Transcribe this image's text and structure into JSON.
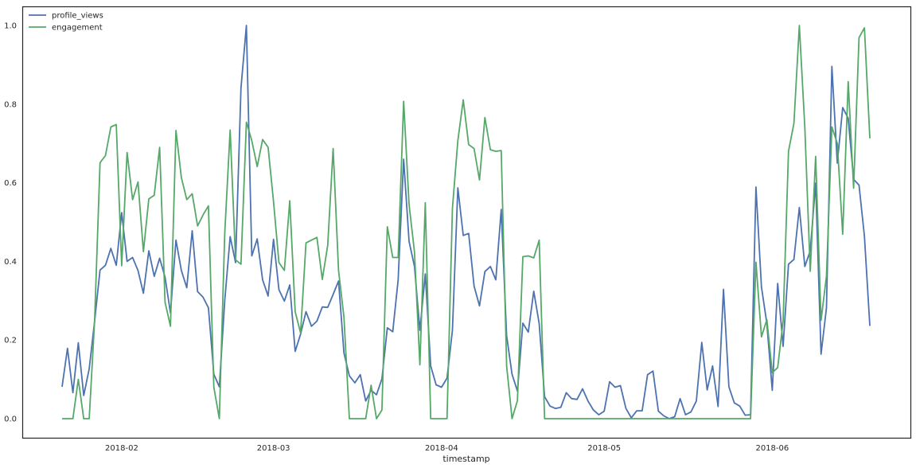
{
  "chart_data": {
    "type": "line",
    "title": "",
    "xlabel": "timestamp",
    "ylabel": "",
    "ylim": [
      -0.05,
      1.05
    ],
    "grid": false,
    "legend_position": "top-left",
    "xticks": [
      {
        "date": "2018-02-01",
        "label": "2018-02"
      },
      {
        "date": "2018-03-01",
        "label": "2018-03"
      },
      {
        "date": "2018-04-01",
        "label": "2018-04"
      },
      {
        "date": "2018-05-01",
        "label": "2018-05"
      },
      {
        "date": "2018-06-01",
        "label": "2018-06"
      }
    ],
    "yticks": [
      {
        "value": 0.0,
        "label": "0.0"
      },
      {
        "value": 0.2,
        "label": "0.2"
      },
      {
        "value": 0.4,
        "label": "0.4"
      },
      {
        "value": 0.6,
        "label": "0.6"
      },
      {
        "value": 0.8,
        "label": "0.8"
      },
      {
        "value": 1.0,
        "label": "1.0"
      }
    ],
    "x": [
      "2018-01-21",
      "2018-01-22",
      "2018-01-23",
      "2018-01-24",
      "2018-01-25",
      "2018-01-26",
      "2018-01-27",
      "2018-01-28",
      "2018-01-29",
      "2018-01-30",
      "2018-01-31",
      "2018-02-01",
      "2018-02-02",
      "2018-02-03",
      "2018-02-04",
      "2018-02-05",
      "2018-02-06",
      "2018-02-07",
      "2018-02-08",
      "2018-02-09",
      "2018-02-10",
      "2018-02-11",
      "2018-02-12",
      "2018-02-13",
      "2018-02-14",
      "2018-02-15",
      "2018-02-16",
      "2018-02-17",
      "2018-02-18",
      "2018-02-19",
      "2018-02-20",
      "2018-02-21",
      "2018-02-22",
      "2018-02-23",
      "2018-02-24",
      "2018-02-25",
      "2018-02-26",
      "2018-02-27",
      "2018-02-28",
      "2018-03-01",
      "2018-03-02",
      "2018-03-03",
      "2018-03-04",
      "2018-03-05",
      "2018-03-06",
      "2018-03-07",
      "2018-03-08",
      "2018-03-09",
      "2018-03-10",
      "2018-03-11",
      "2018-03-12",
      "2018-03-13",
      "2018-03-14",
      "2018-03-15",
      "2018-03-16",
      "2018-03-17",
      "2018-03-18",
      "2018-03-19",
      "2018-03-20",
      "2018-03-21",
      "2018-03-22",
      "2018-03-23",
      "2018-03-24",
      "2018-03-25",
      "2018-03-26",
      "2018-03-27",
      "2018-03-28",
      "2018-03-29",
      "2018-03-30",
      "2018-03-31",
      "2018-04-01",
      "2018-04-02",
      "2018-04-03",
      "2018-04-04",
      "2018-04-05",
      "2018-04-06",
      "2018-04-07",
      "2018-04-08",
      "2018-04-09",
      "2018-04-10",
      "2018-04-11",
      "2018-04-12",
      "2018-04-13",
      "2018-04-14",
      "2018-04-15",
      "2018-04-16",
      "2018-04-17",
      "2018-04-18",
      "2018-04-19",
      "2018-04-20",
      "2018-04-21",
      "2018-04-22",
      "2018-04-23",
      "2018-04-24",
      "2018-04-25",
      "2018-04-26",
      "2018-04-27",
      "2018-04-28",
      "2018-04-29",
      "2018-04-30",
      "2018-05-01",
      "2018-05-02",
      "2018-05-03",
      "2018-05-04",
      "2018-05-05",
      "2018-05-06",
      "2018-05-07",
      "2018-05-08",
      "2018-05-09",
      "2018-05-10",
      "2018-05-11",
      "2018-05-12",
      "2018-05-13",
      "2018-05-14",
      "2018-05-15",
      "2018-05-16",
      "2018-05-17",
      "2018-05-18",
      "2018-05-19",
      "2018-05-20",
      "2018-05-21",
      "2018-05-22",
      "2018-05-23",
      "2018-05-24",
      "2018-05-25",
      "2018-05-26",
      "2018-05-27",
      "2018-05-28",
      "2018-05-29",
      "2018-05-30",
      "2018-05-31",
      "2018-06-01",
      "2018-06-02",
      "2018-06-03",
      "2018-06-04",
      "2018-06-05",
      "2018-06-06",
      "2018-06-07",
      "2018-06-08",
      "2018-06-09",
      "2018-06-10",
      "2018-06-11",
      "2018-06-12",
      "2018-06-13",
      "2018-06-14",
      "2018-06-15",
      "2018-06-16",
      "2018-06-17",
      "2018-06-18",
      "2018-06-19"
    ],
    "series": [
      {
        "name": "profile_views",
        "color": "#4c72b0",
        "values": [
          0.081,
          0.179,
          0.066,
          0.193,
          0.059,
          0.127,
          0.248,
          0.378,
          0.39,
          0.433,
          0.39,
          0.524,
          0.4,
          0.41,
          0.377,
          0.319,
          0.427,
          0.362,
          0.408,
          0.36,
          0.269,
          0.454,
          0.377,
          0.333,
          0.478,
          0.323,
          0.309,
          0.282,
          0.113,
          0.081,
          0.3,
          0.463,
          0.397,
          0.841,
          1.0,
          0.414,
          0.457,
          0.353,
          0.312,
          0.456,
          0.328,
          0.299,
          0.34,
          0.171,
          0.215,
          0.272,
          0.235,
          0.248,
          0.284,
          0.283,
          0.316,
          0.35,
          0.167,
          0.109,
          0.091,
          0.112,
          0.045,
          0.072,
          0.061,
          0.101,
          0.231,
          0.221,
          0.353,
          0.66,
          0.451,
          0.387,
          0.225,
          0.368,
          0.134,
          0.086,
          0.08,
          0.103,
          0.225,
          0.587,
          0.466,
          0.471,
          0.337,
          0.287,
          0.374,
          0.387,
          0.353,
          0.532,
          0.211,
          0.113,
          0.07,
          0.243,
          0.22,
          0.324,
          0.242,
          0.056,
          0.032,
          0.026,
          0.029,
          0.066,
          0.051,
          0.049,
          0.076,
          0.045,
          0.022,
          0.01,
          0.019,
          0.094,
          0.08,
          0.084,
          0.026,
          0.002,
          0.02,
          0.02,
          0.112,
          0.121,
          0.019,
          0.007,
          0.0,
          0.005,
          0.051,
          0.01,
          0.017,
          0.045,
          0.194,
          0.073,
          0.134,
          0.031,
          0.329,
          0.081,
          0.04,
          0.032,
          0.009,
          0.01,
          0.589,
          0.335,
          0.242,
          0.072,
          0.344,
          0.184,
          0.393,
          0.405,
          0.537,
          0.387,
          0.427,
          0.599,
          0.164,
          0.282,
          0.896,
          0.65,
          0.791,
          0.764,
          0.609,
          0.594,
          0.464,
          0.236
        ]
      },
      {
        "name": "engagement",
        "color": "#55a868",
        "values": [
          0,
          0,
          0,
          0.1,
          0,
          0,
          0.25,
          0.651,
          0.669,
          0.742,
          0.748,
          0.389,
          0.677,
          0.557,
          0.602,
          0.425,
          0.559,
          0.568,
          0.69,
          0.296,
          0.235,
          0.733,
          0.613,
          0.557,
          0.572,
          0.49,
          0.518,
          0.541,
          0.08,
          0,
          0.471,
          0.734,
          0.404,
          0.393,
          0.754,
          0.707,
          0.641,
          0.71,
          0.69,
          0.552,
          0.397,
          0.377,
          0.554,
          0.272,
          0.218,
          0.447,
          0.454,
          0.461,
          0.354,
          0.441,
          0.687,
          0.377,
          0.258,
          0,
          0,
          0,
          0,
          0.085,
          0,
          0.022,
          0.488,
          0.41,
          0.41,
          0.807,
          0.545,
          0.424,
          0.137,
          0.549,
          0,
          0,
          0,
          0,
          0.535,
          0.707,
          0.811,
          0.697,
          0.687,
          0.607,
          0.766,
          0.684,
          0.68,
          0.682,
          0.134,
          0,
          0.046,
          0.412,
          0.414,
          0.409,
          0.454,
          0,
          0,
          0,
          0,
          0,
          0,
          0,
          0,
          0,
          0,
          0,
          0,
          0,
          0,
          0,
          0,
          0,
          0,
          0,
          0,
          0,
          0,
          0,
          0,
          0,
          0,
          0,
          0,
          0,
          0,
          0,
          0,
          0,
          0,
          0,
          0,
          0,
          0,
          0,
          0.398,
          0.208,
          0.252,
          0.117,
          0.13,
          0.248,
          0.68,
          0.751,
          1.0,
          0.741,
          0.375,
          0.667,
          0.25,
          0.363,
          0.742,
          0.7,
          0.469,
          0.857,
          0.586,
          0.969,
          0.994,
          0.713
        ]
      }
    ]
  }
}
